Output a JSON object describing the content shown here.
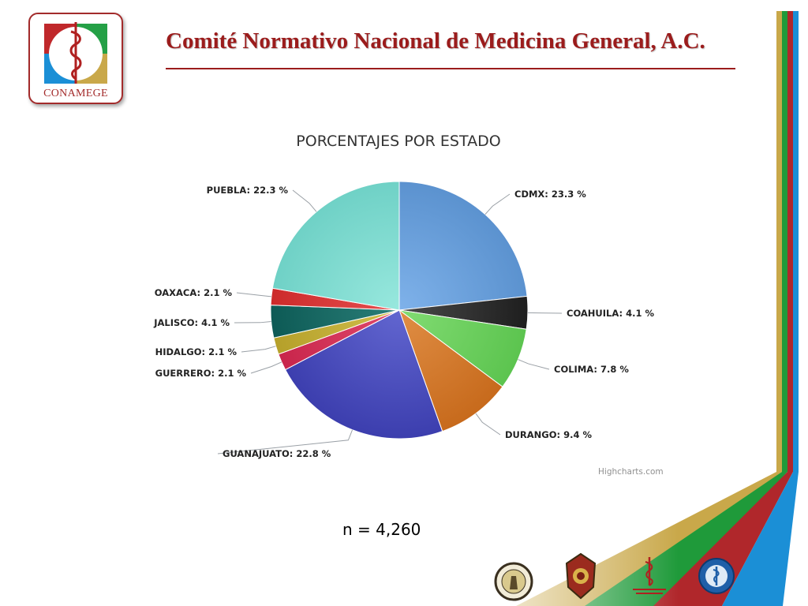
{
  "header": {
    "org_name": "Comité Normativo Nacional de Medicina General, A.C.",
    "logo_text": "CONAMEGE"
  },
  "chart_data": {
    "type": "pie",
    "title": "PORCENTAJES POR ESTADO",
    "slices": [
      {
        "label": "CDMX",
        "value": 23.3,
        "label_text": "CDMX: 23.3 %",
        "color": "#5b92cf",
        "light": "#7fb2ea"
      },
      {
        "label": "COAHUILA",
        "value": 4.1,
        "label_text": "COAHUILA: 4.1 %",
        "color": "#1e1e1e",
        "light": "#4a4a4a"
      },
      {
        "label": "COLIMA",
        "value": 7.8,
        "label_text": "COLIMA: 7.8 %",
        "color": "#5cc44f",
        "light": "#82dc73"
      },
      {
        "label": "DURANGO",
        "value": 9.4,
        "label_text": "DURANGO: 9.4 %",
        "color": "#c76a1c",
        "light": "#e08e45"
      },
      {
        "label": "GUANAJUATO",
        "value": 22.8,
        "label_text": "GUANAJUATO: 22.8 %",
        "color": "#3c3eae",
        "light": "#6266d0"
      },
      {
        "label": "GUERRERO",
        "value": 2.1,
        "label_text": "GUERRERO: 2.1 %",
        "color": "#c8254b",
        "light": "#e04a6c"
      },
      {
        "label": "HIDALGO",
        "value": 2.1,
        "label_text": "HIDALGO: 2.1 %",
        "color": "#b5a02a",
        "light": "#d1bf4c"
      },
      {
        "label": "JALISCO",
        "value": 4.1,
        "label_text": "JALISCO: 4.1 %",
        "color": "#0d5a55",
        "light": "#2b7f79"
      },
      {
        "label": "OAXACA",
        "value": 2.1,
        "label_text": "OAXACA: 2.1 %",
        "color": "#cc2a2a",
        "light": "#e65050"
      },
      {
        "label": "PUEBLA",
        "value": 22.3,
        "label_text": "PUEBLA: 22.3 %",
        "color": "#6fd1c6",
        "light": "#98e8de"
      }
    ],
    "credits": "Highcharts.com"
  },
  "footer": {
    "sample_size": "n = 4,260"
  },
  "colors": {
    "brand_red": "#9b1c1c",
    "stripe_colors": [
      "#c9a84a",
      "#1f9a3a",
      "#b0272b",
      "#1b8fd6"
    ]
  }
}
